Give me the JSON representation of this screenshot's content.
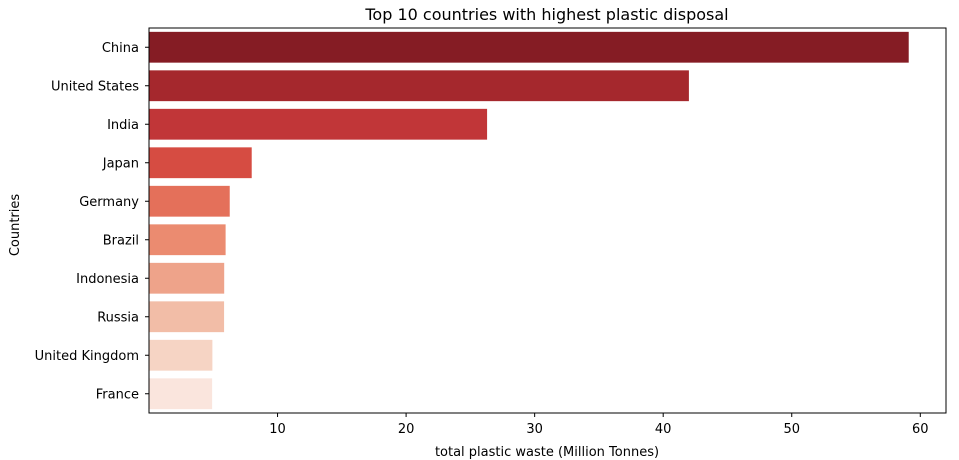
{
  "chart_data": {
    "type": "bar",
    "orientation": "horizontal",
    "title": "Top 10 countries with highest plastic disposal",
    "xlabel": "total plastic waste (Million Tonnes)",
    "ylabel": "Countries",
    "xlim": [
      0,
      62
    ],
    "xticks": [
      10,
      20,
      30,
      40,
      50,
      60
    ],
    "grid": false,
    "categories": [
      "China",
      "United States",
      "India",
      "Japan",
      "Germany",
      "Brazil",
      "Indonesia",
      "Russia",
      "United Kingdom",
      "France"
    ],
    "values": [
      59.1,
      42.0,
      26.3,
      7.99,
      6.28,
      5.96,
      5.85,
      5.84,
      4.93,
      4.91
    ],
    "colors": [
      "#851c24",
      "#a5282d",
      "#c13638",
      "#d64c42",
      "#e4705a",
      "#eb8b70",
      "#eea38a",
      "#f2bda7",
      "#f6d4c4",
      "#fae5dd"
    ]
  }
}
